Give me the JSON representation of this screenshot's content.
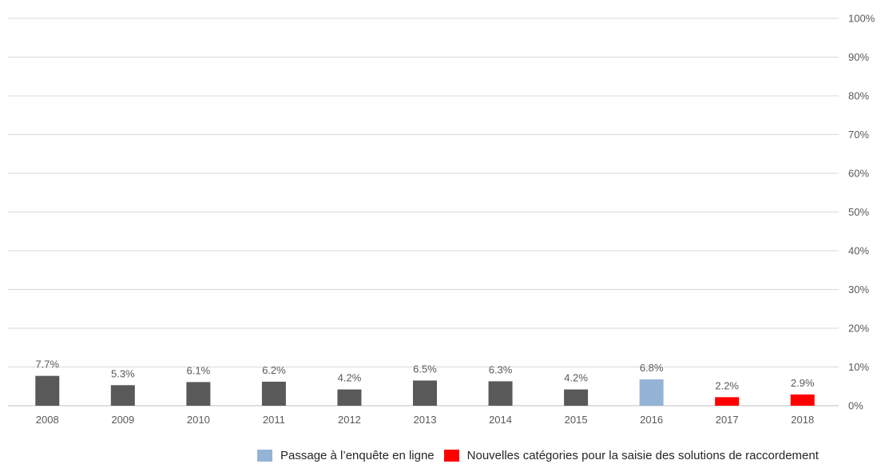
{
  "chart_data": {
    "type": "bar",
    "categories": [
      "2008",
      "2009",
      "2010",
      "2011",
      "2012",
      "2013",
      "2014",
      "2015",
      "2016",
      "2017",
      "2018"
    ],
    "values": [
      7.7,
      5.3,
      6.1,
      6.2,
      4.2,
      6.5,
      6.3,
      4.2,
      6.8,
      2.2,
      2.9
    ],
    "data_labels": [
      "7.7%",
      "5.3%",
      "6.1%",
      "6.2%",
      "4.2%",
      "6.5%",
      "6.3%",
      "4.2%",
      "6.8%",
      "2.2%",
      "2.9%"
    ],
    "ylim": [
      0,
      100
    ],
    "yticks": [
      0,
      10,
      20,
      30,
      40,
      50,
      60,
      70,
      80,
      90,
      100
    ],
    "ytick_labels": [
      "0%",
      "10%",
      "20%",
      "30%",
      "40%",
      "50%",
      "60%",
      "70%",
      "80%",
      "90%",
      "100%"
    ],
    "y_axis_position": "right",
    "grid": true,
    "title": "",
    "xlabel": "",
    "ylabel": "",
    "default_color": "#595959",
    "bar_colors": [
      "#595959",
      "#595959",
      "#595959",
      "#595959",
      "#595959",
      "#595959",
      "#595959",
      "#595959",
      "#95b3d7",
      "#ff0000",
      "#ff0000"
    ],
    "legend_position": "bottom-right",
    "legend": [
      {
        "label": "Passage à l’enquête en ligne",
        "color": "#95b3d7"
      },
      {
        "label": "Nouvelles catégories pour la saisie des solutions de raccordement",
        "color": "#ff0000"
      }
    ]
  }
}
